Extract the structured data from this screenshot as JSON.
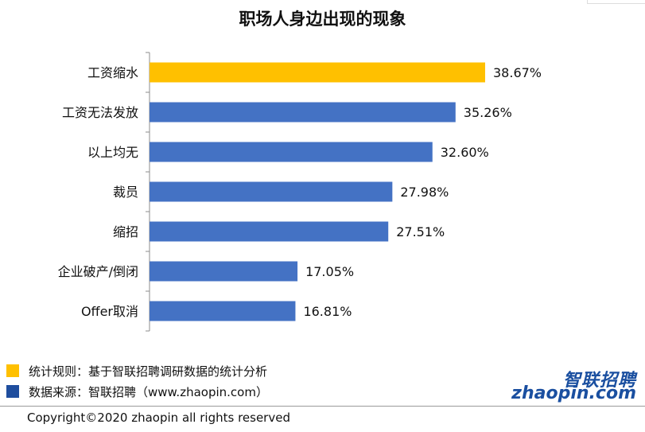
{
  "chart_data": {
    "type": "bar",
    "orientation": "horizontal",
    "title": "职场人身边出现的现象",
    "categories": [
      "工资缩水",
      "工资无法发放",
      "以上均无",
      "裁员",
      "缩招",
      "企业破产/倒闭",
      "Offer取消"
    ],
    "values": [
      38.67,
      35.26,
      32.6,
      27.98,
      27.51,
      17.05,
      16.81
    ],
    "labels": [
      "38.67%",
      "35.26%",
      "32.60%",
      "27.98%",
      "27.51%",
      "17.05%",
      "16.81%"
    ],
    "colors": [
      "#FFC000",
      "#4472C4",
      "#4472C4",
      "#4472C4",
      "#4472C4",
      "#4472C4",
      "#4472C4"
    ],
    "xlim": [
      0,
      40
    ],
    "grid": false
  },
  "legend": [
    {
      "text": "统计规则：基于智联招聘调研数据的统计分析",
      "color": "#FFC000"
    },
    {
      "text": "数据来源：智联招聘（www.zhaopin.com）",
      "color": "#1F4E9E"
    }
  ],
  "logo": {
    "cn": "智联招聘",
    "en": "zhaopin.com"
  },
  "copyright": "Copyright©2020 zhaopin all rights reserved"
}
